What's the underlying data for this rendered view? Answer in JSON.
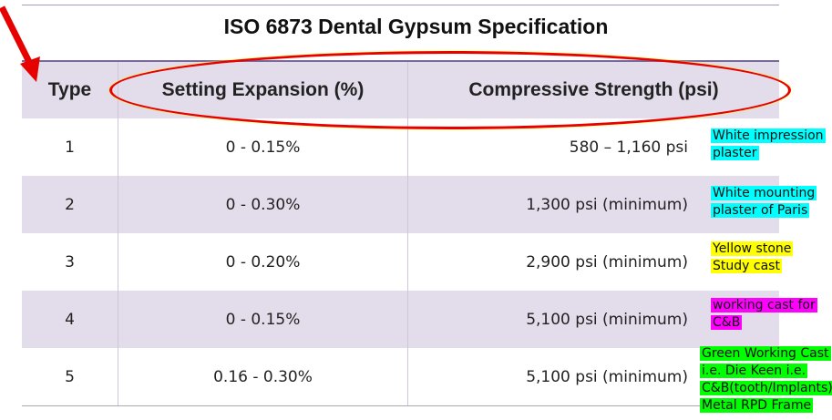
{
  "title": "ISO 6873 Dental Gypsum Specification",
  "headers": [
    "Type",
    "Setting Expansion (%)",
    "Compressive Strength (psi)"
  ],
  "rows": [
    {
      "type": "1",
      "expansion": "0 - 0.15%",
      "strength": "580 – 1,160 psi"
    },
    {
      "type": "2",
      "expansion": "0 - 0.30%",
      "strength": "1,300 psi (minimum)"
    },
    {
      "type": "3",
      "expansion": "0 - 0.20%",
      "strength": "2,900 psi (minimum)"
    },
    {
      "type": "4",
      "expansion": "0 - 0.15%",
      "strength": "5,100 psi (minimum)"
    },
    {
      "type": "5",
      "expansion": "0.16 - 0.30%",
      "strength": "5,100 psi (minimum)"
    }
  ],
  "notes": [
    {
      "lines": [
        "White impression",
        "plaster"
      ],
      "color": "#00ffff"
    },
    {
      "lines": [
        "White mounting",
        "plaster of Paris"
      ],
      "color": "#00ffff"
    },
    {
      "lines": [
        "Yellow stone",
        "Study cast"
      ],
      "color": "#ffff00"
    },
    {
      "lines": [
        "working cast for",
        "C&B"
      ],
      "color": "#ff00ff"
    },
    {
      "lines": [
        "Green Working Cast",
        "i.e. Die Keen i.e.",
        "C&B(tooth/Implants),",
        "Metal RPD Frame"
      ],
      "color": "#00ff00"
    }
  ],
  "annotation_colors": {
    "arrow": "#e60000",
    "ellipse": "#e60000"
  }
}
